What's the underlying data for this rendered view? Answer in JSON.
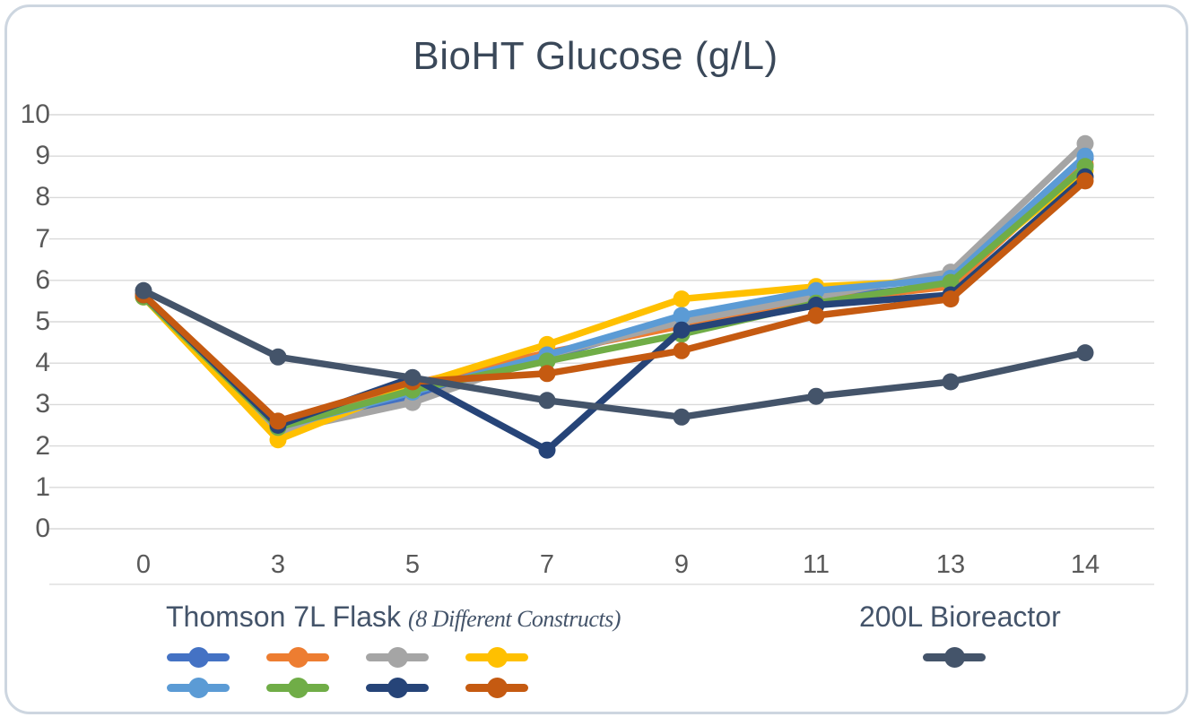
{
  "chart_data": {
    "type": "line",
    "title": "BioHT Glucose (g/L)",
    "xlabel": "",
    "ylabel": "",
    "x_categories": [
      "0",
      "3",
      "5",
      "7",
      "9",
      "11",
      "13",
      "14"
    ],
    "y_ticks": [
      0,
      1,
      2,
      3,
      4,
      5,
      6,
      7,
      8,
      9,
      10
    ],
    "ylim": [
      0,
      10
    ],
    "grid": "horizontal",
    "legend_position": "bottom",
    "legend_groups": [
      {
        "label": "Thomson 7L Flask",
        "sublabel": "(8 Different Constructs)"
      },
      {
        "label": "200L Bioreactor",
        "sublabel": ""
      }
    ],
    "series": [
      {
        "id": "flask-construct-blue",
        "group": "Thomson 7L Flask",
        "color": "#4472c4",
        "values": [
          5.65,
          2.4,
          3.2,
          4.15,
          5.05,
          5.55,
          5.9,
          8.95
        ]
      },
      {
        "id": "flask-construct-orange",
        "group": "Thomson 7L Flask",
        "color": "#ed7d31",
        "values": [
          5.65,
          2.5,
          3.5,
          4.25,
          4.9,
          5.5,
          5.85,
          8.8
        ]
      },
      {
        "id": "flask-construct-gray",
        "group": "Thomson 7L Flask",
        "color": "#a5a5a5",
        "values": [
          5.6,
          2.35,
          3.05,
          4.2,
          5.0,
          5.6,
          6.2,
          9.3
        ]
      },
      {
        "id": "flask-construct-yellow",
        "group": "Thomson 7L Flask",
        "color": "#ffc000",
        "values": [
          5.6,
          2.15,
          3.45,
          4.45,
          5.55,
          5.85,
          6.0,
          8.65
        ]
      },
      {
        "id": "flask-construct-lightblue",
        "group": "Thomson 7L Flask",
        "color": "#5b9bd5",
        "values": [
          5.65,
          2.45,
          3.3,
          4.2,
          5.15,
          5.75,
          6.05,
          9.0
        ]
      },
      {
        "id": "flask-construct-green",
        "group": "Thomson 7L Flask",
        "color": "#70ad47",
        "values": [
          5.6,
          2.45,
          3.35,
          4.05,
          4.7,
          5.45,
          5.95,
          8.75
        ]
      },
      {
        "id": "flask-construct-navy",
        "group": "Thomson 7L Flask",
        "color": "#264478",
        "values": [
          5.65,
          2.5,
          3.65,
          1.9,
          4.8,
          5.4,
          5.65,
          8.5
        ]
      },
      {
        "id": "flask-construct-brown",
        "group": "Thomson 7L Flask",
        "color": "#c55a11",
        "values": [
          5.65,
          2.6,
          3.55,
          3.75,
          4.3,
          5.15,
          5.55,
          8.4
        ]
      },
      {
        "id": "bioreactor-200l",
        "group": "200L Bioreactor",
        "color": "#44546a",
        "values": [
          5.75,
          4.15,
          3.65,
          3.1,
          2.7,
          3.2,
          3.55,
          4.25
        ]
      }
    ]
  },
  "style": {
    "gridline_color": "#d9d9d9",
    "card_border_color": "#cdd6e0",
    "title_color": "#3a4859",
    "axis_text_color": "#595959",
    "legend_text_color": "#44546a"
  }
}
